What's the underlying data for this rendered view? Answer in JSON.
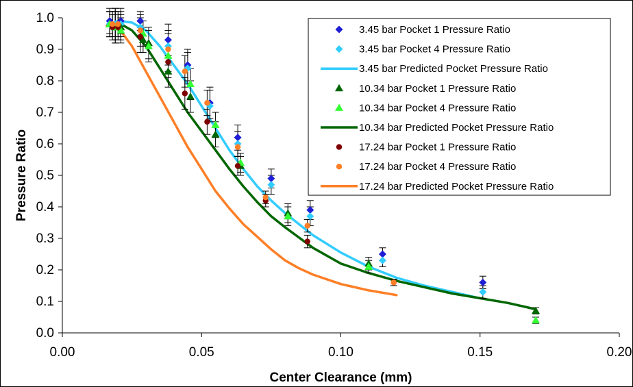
{
  "chart_data": {
    "type": "scatter",
    "title": "",
    "xlabel": "Center Clearance (mm)",
    "ylabel": "Pressure Ratio",
    "xlim": [
      0.0,
      0.2
    ],
    "ylim": [
      0.0,
      1.0
    ],
    "x_ticks": [
      "0.00",
      "0.05",
      "0.10",
      "0.15",
      "0.20"
    ],
    "y_ticks": [
      "0.0",
      "0.1",
      "0.2",
      "0.3",
      "0.4",
      "0.5",
      "0.6",
      "0.7",
      "0.8",
      "0.9",
      "1.0"
    ],
    "grid": false,
    "legend_position": "top-right",
    "error_bars": true,
    "series": [
      {
        "name": "3.45 bar Pocket 1 Pressure Ratio",
        "kind": "points",
        "marker": "diamond",
        "color": "#1f1fd6",
        "x": [
          0.017,
          0.019,
          0.021,
          0.028,
          0.038,
          0.045,
          0.053,
          0.063,
          0.075,
          0.089,
          0.115,
          0.151
        ],
        "y": [
          0.99,
          0.98,
          0.99,
          0.99,
          0.93,
          0.85,
          0.73,
          0.62,
          0.49,
          0.39,
          0.25,
          0.16
        ],
        "err": [
          0.04,
          0.05,
          0.04,
          0.03,
          0.05,
          0.05,
          0.05,
          0.04,
          0.03,
          0.03,
          0.02,
          0.02
        ]
      },
      {
        "name": "3.45 bar Pocket 4 Pressure Ratio",
        "kind": "points",
        "marker": "diamond",
        "color": "#33ccff",
        "x": [
          0.017,
          0.019,
          0.021,
          0.028,
          0.038,
          0.045,
          0.053,
          0.063,
          0.075,
          0.089,
          0.115,
          0.151
        ],
        "y": [
          0.98,
          0.98,
          0.98,
          0.97,
          0.91,
          0.84,
          0.72,
          0.6,
          0.47,
          0.37,
          0.23,
          0.13
        ],
        "err": [
          0.04,
          0.05,
          0.04,
          0.03,
          0.05,
          0.05,
          0.05,
          0.04,
          0.03,
          0.03,
          0.02,
          0.02
        ]
      },
      {
        "name": "3.45 bar Predicted Pocket Pressure Ratio",
        "kind": "line",
        "color": "#33ccff",
        "x": [
          0.016,
          0.02,
          0.025,
          0.03,
          0.035,
          0.04,
          0.045,
          0.05,
          0.055,
          0.06,
          0.065,
          0.07,
          0.075,
          0.08,
          0.09,
          0.1,
          0.11,
          0.12,
          0.13,
          0.14,
          0.15
        ],
        "y": [
          0.975,
          0.99,
          0.985,
          0.96,
          0.91,
          0.85,
          0.79,
          0.72,
          0.65,
          0.58,
          0.52,
          0.465,
          0.42,
          0.38,
          0.31,
          0.255,
          0.21,
          0.175,
          0.15,
          0.13,
          0.11
        ]
      },
      {
        "name": "10.34 bar Pocket 1 Pressure Ratio",
        "kind": "points",
        "marker": "triangle",
        "color": "#006600",
        "x": [
          0.017,
          0.019,
          0.021,
          0.029,
          0.031,
          0.038,
          0.046,
          0.055,
          0.064,
          0.081,
          0.11,
          0.17
        ],
        "y": [
          0.98,
          0.97,
          0.97,
          0.93,
          0.92,
          0.83,
          0.75,
          0.63,
          0.53,
          0.38,
          0.22,
          0.07
        ],
        "err": [
          0.04,
          0.05,
          0.04,
          0.04,
          0.05,
          0.05,
          0.05,
          0.04,
          0.03,
          0.03,
          0.02,
          0.01
        ]
      },
      {
        "name": "10.34 bar Pocket 4 Pressure Ratio",
        "kind": "points",
        "marker": "triangle",
        "color": "#33ff33",
        "x": [
          0.017,
          0.019,
          0.021,
          0.029,
          0.031,
          0.038,
          0.046,
          0.055,
          0.064,
          0.081,
          0.11,
          0.17
        ],
        "y": [
          0.98,
          0.97,
          0.96,
          0.95,
          0.91,
          0.88,
          0.79,
          0.66,
          0.54,
          0.37,
          0.21,
          0.04
        ],
        "err": [
          0.04,
          0.05,
          0.04,
          0.04,
          0.05,
          0.05,
          0.05,
          0.04,
          0.03,
          0.03,
          0.02,
          0.01
        ]
      },
      {
        "name": "10.34 bar Predicted Pocket Pressure Ratio",
        "kind": "line",
        "color": "#006600",
        "x": [
          0.016,
          0.02,
          0.025,
          0.03,
          0.035,
          0.04,
          0.045,
          0.05,
          0.055,
          0.06,
          0.065,
          0.07,
          0.075,
          0.08,
          0.09,
          0.1,
          0.11,
          0.12,
          0.13,
          0.14,
          0.15,
          0.16,
          0.17
        ],
        "y": [
          0.975,
          0.985,
          0.96,
          0.91,
          0.84,
          0.77,
          0.7,
          0.64,
          0.58,
          0.52,
          0.465,
          0.415,
          0.37,
          0.335,
          0.27,
          0.22,
          0.19,
          0.165,
          0.145,
          0.125,
          0.11,
          0.095,
          0.075
        ]
      },
      {
        "name": "17.24 bar Pocket 1 Pressure Ratio",
        "kind": "points",
        "marker": "circle",
        "color": "#7f0000",
        "x": [
          0.018,
          0.02,
          0.028,
          0.038,
          0.044,
          0.052,
          0.063,
          0.073,
          0.088,
          0.119
        ],
        "y": [
          0.97,
          0.97,
          0.94,
          0.86,
          0.76,
          0.67,
          0.53,
          0.42,
          0.29,
          0.16
        ],
        "err": [
          0.04,
          0.04,
          0.05,
          0.05,
          0.05,
          0.04,
          0.03,
          0.02,
          0.02,
          0.01
        ]
      },
      {
        "name": "17.24 bar Pocket 4 Pressure Ratio",
        "kind": "points",
        "marker": "circle",
        "color": "#ff7f27",
        "x": [
          0.018,
          0.02,
          0.028,
          0.038,
          0.044,
          0.052,
          0.063,
          0.073,
          0.088,
          0.119
        ],
        "y": [
          0.98,
          0.98,
          0.96,
          0.9,
          0.83,
          0.73,
          0.59,
          0.43,
          0.34,
          0.16
        ],
        "err": [
          0.04,
          0.04,
          0.05,
          0.05,
          0.05,
          0.04,
          0.03,
          0.02,
          0.02,
          0.01
        ]
      },
      {
        "name": "17.24 bar Predicted Pocket Pressure Ratio",
        "kind": "line",
        "color": "#ff7f27",
        "x": [
          0.016,
          0.02,
          0.025,
          0.03,
          0.035,
          0.04,
          0.045,
          0.05,
          0.055,
          0.06,
          0.065,
          0.07,
          0.075,
          0.08,
          0.085,
          0.09,
          0.1,
          0.11,
          0.12
        ],
        "y": [
          0.975,
          0.97,
          0.91,
          0.83,
          0.75,
          0.67,
          0.59,
          0.52,
          0.45,
          0.395,
          0.345,
          0.305,
          0.265,
          0.23,
          0.205,
          0.185,
          0.155,
          0.135,
          0.12
        ]
      }
    ]
  }
}
